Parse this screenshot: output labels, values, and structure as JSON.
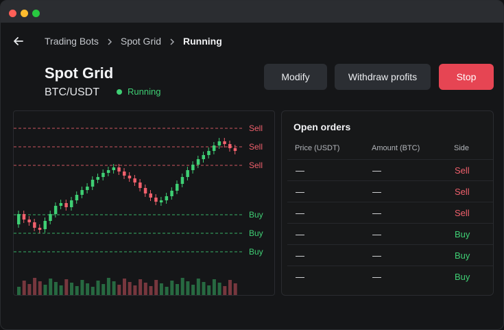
{
  "breadcrumb": {
    "items": [
      "Trading Bots",
      "Spot Grid",
      "Running"
    ]
  },
  "header": {
    "title": "Spot Grid",
    "pair": "BTC/USDT",
    "status": "Running"
  },
  "actions": {
    "modify": "Modify",
    "withdraw": "Withdraw profits",
    "stop": "Stop"
  },
  "colors": {
    "sell": "#f0606c",
    "buy": "#3fcf74",
    "stop": "#e64553",
    "accent_bg": "#2b2e33"
  },
  "chart": {
    "grid_labels": [
      "Sell",
      "Sell",
      "Sell",
      "Buy",
      "Buy",
      "Buy"
    ]
  },
  "orders": {
    "title": "Open orders",
    "columns": [
      "Price (USDT)",
      "Amount (BTC)",
      "Side"
    ],
    "rows": [
      {
        "price": "—",
        "amount": "—",
        "side": "Sell"
      },
      {
        "price": "—",
        "amount": "—",
        "side": "Sell"
      },
      {
        "price": "—",
        "amount": "—",
        "side": "Sell"
      },
      {
        "price": "—",
        "amount": "—",
        "side": "Buy"
      },
      {
        "price": "—",
        "amount": "—",
        "side": "Buy"
      },
      {
        "price": "—",
        "amount": "—",
        "side": "Buy"
      }
    ]
  },
  "icons": {
    "back": "arrow-left-icon",
    "separator": "chevron-right-icon"
  }
}
